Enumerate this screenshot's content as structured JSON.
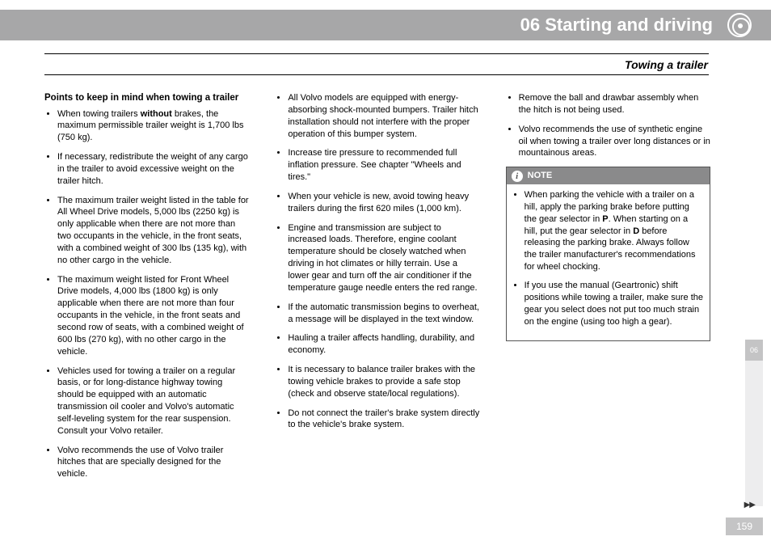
{
  "header": {
    "chapter_title": "06 Starting and driving"
  },
  "section_title": "Towing a trailer",
  "col1": {
    "heading": "Points to keep in mind when towing a trailer",
    "b1a": "When towing trailers ",
    "b1b": "without",
    "b1c": " brakes, the maximum permissible trailer weight is 1,700 lbs (750 kg).",
    "b2": "If necessary, redistribute the weight of any cargo in the trailer to avoid excessive weight on the trailer hitch.",
    "b3": "The maximum trailer weight listed in the table for All Wheel Drive models, 5,000 lbs (2250 kg) is only applicable when there are not more than two occupants in the vehicle, in the front seats, with a combined weight of 300 lbs (135 kg), with no other cargo in the vehicle.",
    "b4": "The maximum weight listed for Front Wheel Drive models, 4,000 lbs (1800 kg) is only applicable when there are not more than four occupants in the vehicle, in the front seats and second row of seats, with a combined weight of 600 lbs (270 kg), with no other cargo in the vehicle.",
    "b5": "Vehicles used for towing a trailer on a regular basis, or for long-distance highway towing should be equipped with an automatic transmission oil cooler and Volvo's automatic self-leveling system for the rear suspension. Consult your Volvo retailer.",
    "b6": "Volvo recommends the use of Volvo trailer hitches that are specially designed for the vehicle."
  },
  "col2": {
    "b1": "All Volvo models are equipped with energy-absorbing shock-mounted bumpers. Trailer hitch installation should not interfere with the proper operation of this bumper system.",
    "b2": "Increase tire pressure to recommended full inflation pressure. See chapter \"Wheels and tires.\"",
    "b3": "When your vehicle is new, avoid towing heavy trailers during the first 620 miles (1,000 km).",
    "b4": "Engine and transmission are subject to increased loads. Therefore, engine coolant temperature should be closely watched when driving in hot climates or hilly terrain. Use a lower gear and turn off the air conditioner if the temperature gauge needle enters the red range.",
    "b5": "If the automatic transmission begins to overheat, a message will be displayed in the text window.",
    "b6": "Hauling a trailer affects handling, durability, and economy.",
    "b7": "It is necessary to balance trailer brakes with the towing vehicle brakes to provide a safe stop (check and observe state/local regulations).",
    "b8": "Do not connect the trailer's brake system directly to the vehicle's brake system."
  },
  "col3": {
    "b1": "Remove the ball and drawbar assembly when the hitch is not being used.",
    "b2": "Volvo recommends the use of synthetic engine oil when towing a trailer over long distances or in mountainous areas."
  },
  "note": {
    "label": "NOTE",
    "n1a": "When parking the vehicle with a trailer on a hill, apply the parking brake before putting the gear selector in ",
    "n1b": "P",
    "n1c": ". When starting on a hill, put the gear selector in ",
    "n1d": "D",
    "n1e": " before releasing the parking brake. Always follow the trailer manufacturer's recommendations for wheel chocking.",
    "n2": "If you use the manual (Geartronic) shift positions while towing a trailer, make sure the gear you select does not put too much strain on the engine (using too high a gear)."
  },
  "side_tab": "06",
  "page_number": "159",
  "arrows": "▶▶"
}
